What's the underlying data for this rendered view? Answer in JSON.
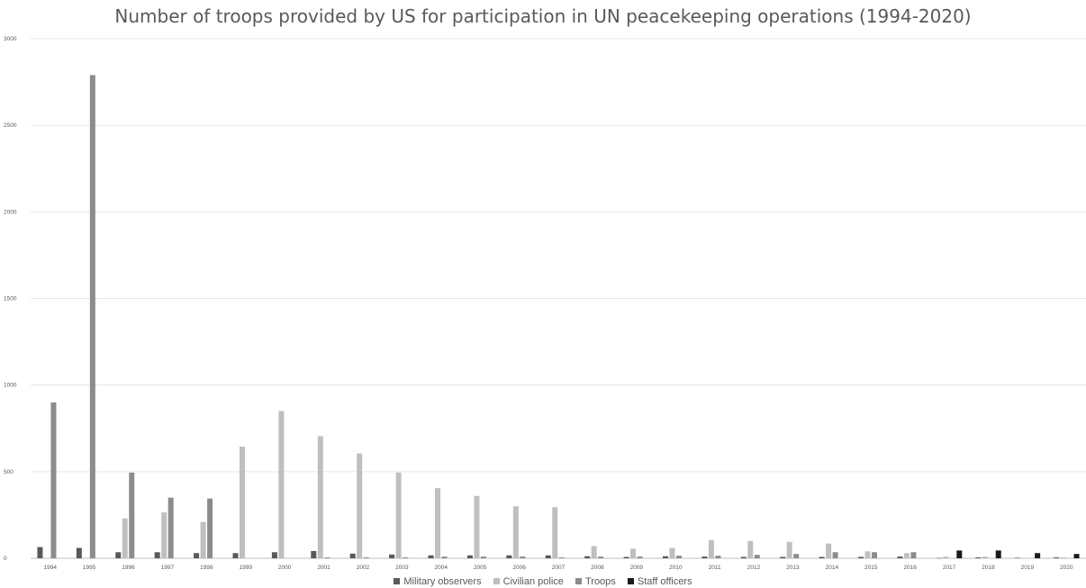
{
  "chart_data": {
    "type": "bar",
    "title": "Number of troops provided by US for participation in UN peacekeeping operations (1994-2020)",
    "xlabel": "",
    "ylabel": "",
    "ylim": [
      0,
      3000
    ],
    "yticks": [
      0,
      500,
      1000,
      1500,
      2000,
      2500,
      3000
    ],
    "grid": true,
    "legend_position": "bottom",
    "categories": [
      "1994",
      "1995",
      "1996",
      "1997",
      "1998",
      "1999",
      "2000",
      "2001",
      "2002",
      "2003",
      "2004",
      "2005",
      "2006",
      "2007",
      "2008",
      "2009",
      "2010",
      "2011",
      "2012",
      "2013",
      "2014",
      "2015",
      "2016",
      "2017",
      "2018",
      "2019",
      "2020"
    ],
    "series": [
      {
        "name": "Military observers",
        "color": "#595959",
        "values": [
          65,
          60,
          35,
          35,
          30,
          30,
          35,
          42,
          27,
          22,
          17,
          17,
          17,
          17,
          12,
          8,
          12,
          10,
          8,
          8,
          8,
          8,
          10,
          2,
          5,
          3,
          5
        ]
      },
      {
        "name": "Civilian police",
        "color": "#bfbfbf",
        "values": [
          0,
          0,
          230,
          265,
          210,
          645,
          850,
          705,
          605,
          495,
          405,
          360,
          300,
          295,
          70,
          55,
          60,
          105,
          100,
          95,
          85,
          40,
          30,
          10,
          10,
          0,
          5
        ]
      },
      {
        "name": "Troops",
        "color": "#8c8c8c",
        "values": [
          900,
          2790,
          495,
          350,
          345,
          0,
          0,
          5,
          5,
          5,
          10,
          10,
          10,
          5,
          10,
          10,
          15,
          15,
          20,
          25,
          35,
          35,
          35,
          0,
          0,
          0,
          0
        ]
      },
      {
        "name": "Staff officers",
        "color": "#1a1a1a",
        "values": [
          0,
          0,
          0,
          0,
          0,
          0,
          0,
          0,
          0,
          0,
          0,
          0,
          0,
          0,
          0,
          0,
          0,
          0,
          0,
          0,
          0,
          0,
          0,
          45,
          45,
          30,
          25
        ]
      }
    ]
  }
}
